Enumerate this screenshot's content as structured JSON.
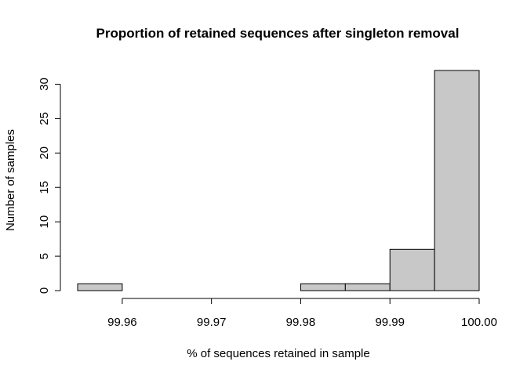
{
  "chart_data": {
    "type": "bar",
    "subtype": "histogram",
    "title": "Proportion of retained sequences after singleton removal",
    "xlabel": "% of sequences retained in sample",
    "ylabel": "Number of samples",
    "bar_color": "#c8c8c8",
    "bins": [
      {
        "start": 99.955,
        "end": 99.96,
        "count": 1
      },
      {
        "start": 99.96,
        "end": 99.965,
        "count": 0
      },
      {
        "start": 99.965,
        "end": 99.97,
        "count": 0
      },
      {
        "start": 99.97,
        "end": 99.975,
        "count": 0
      },
      {
        "start": 99.975,
        "end": 99.98,
        "count": 0
      },
      {
        "start": 99.98,
        "end": 99.985,
        "count": 1
      },
      {
        "start": 99.985,
        "end": 99.99,
        "count": 1
      },
      {
        "start": 99.99,
        "end": 99.995,
        "count": 6
      },
      {
        "start": 99.995,
        "end": 100.0,
        "count": 32
      }
    ],
    "xlim": [
      99.955,
      100.0
    ],
    "ylim": [
      0,
      32
    ],
    "x_ticks": [
      99.96,
      99.97,
      99.98,
      99.99,
      100.0
    ],
    "x_tick_labels": [
      "99.96",
      "99.97",
      "99.98",
      "99.99",
      "100.00"
    ],
    "y_ticks": [
      0,
      5,
      10,
      15,
      20,
      25,
      30
    ],
    "y_tick_labels": [
      "0",
      "5",
      "10",
      "15",
      "20",
      "25",
      "30"
    ],
    "grid": false,
    "legend": "none"
  }
}
